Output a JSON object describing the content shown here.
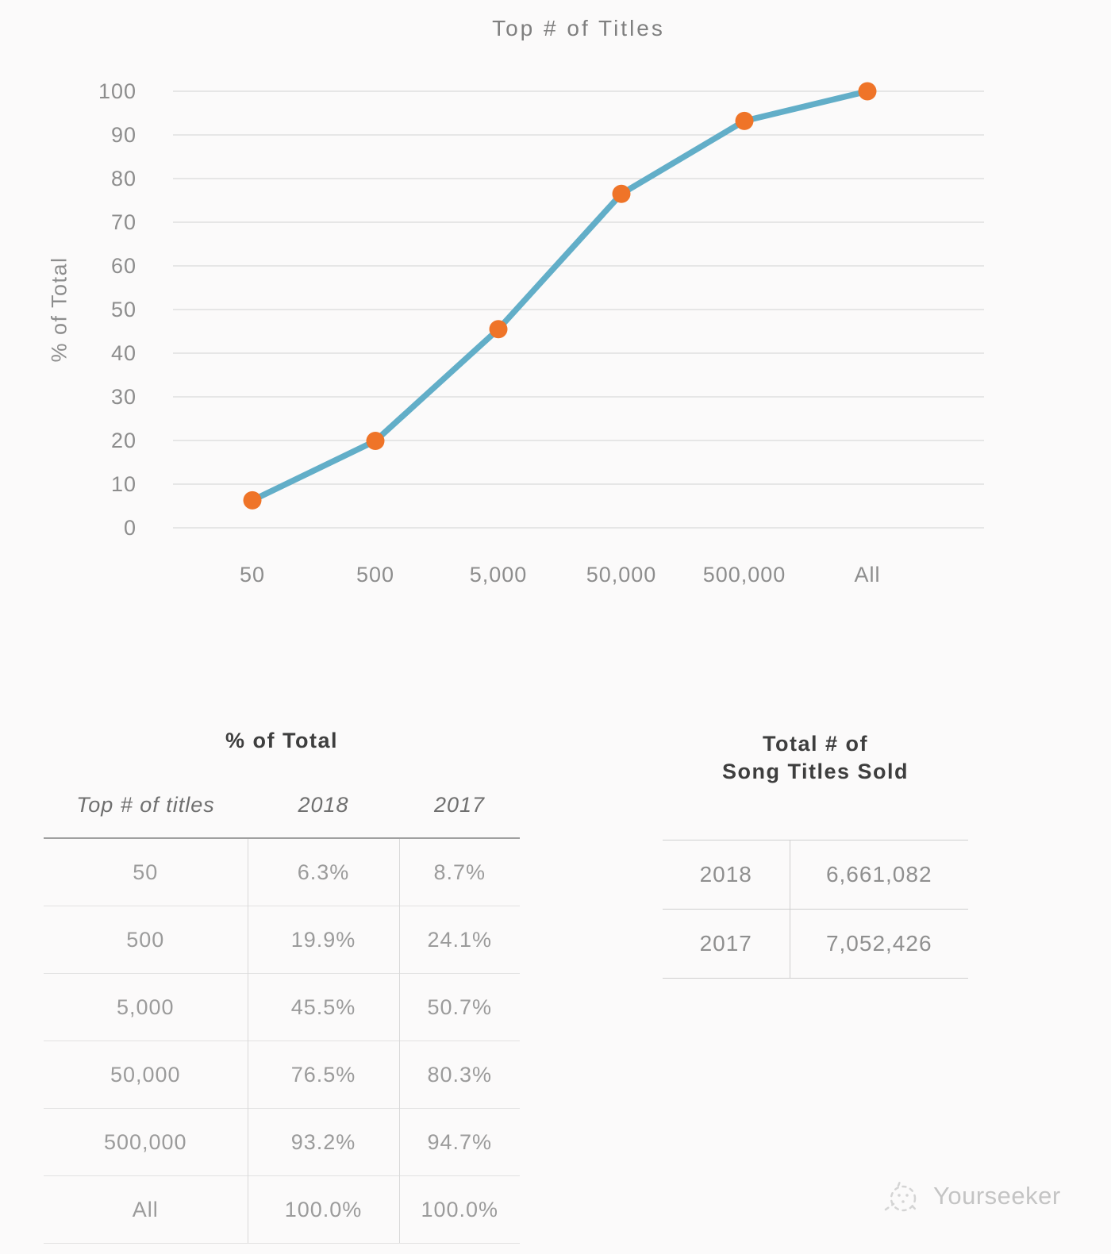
{
  "chart_data": {
    "type": "line",
    "title": "Top # of Titles",
    "ylabel": "% of Total",
    "xlabel": "",
    "categories": [
      "50",
      "500",
      "5,000",
      "50,000",
      "500,000",
      "All"
    ],
    "series": [
      {
        "name": "2018",
        "values": [
          6.3,
          19.9,
          45.5,
          76.5,
          93.2,
          100.0
        ]
      }
    ],
    "ylim": [
      0,
      100
    ],
    "ytick_step": 10,
    "grid": true,
    "legend_position": "none"
  },
  "percent_table": {
    "title": "% of Total",
    "columns": [
      "Top # of titles",
      "2018",
      "2017"
    ],
    "rows": [
      [
        "50",
        "6.3%",
        "8.7%"
      ],
      [
        "500",
        "19.9%",
        "24.1%"
      ],
      [
        "5,000",
        "45.5%",
        "50.7%"
      ],
      [
        "50,000",
        "76.5%",
        "80.3%"
      ],
      [
        "500,000",
        "93.2%",
        "94.7%"
      ],
      [
        "All",
        "100.0%",
        "100.0%"
      ]
    ]
  },
  "totals_table": {
    "title_line1": "Total # of",
    "title_line2": "Song Titles Sold",
    "rows": [
      [
        "2018",
        "6,661,082"
      ],
      [
        "2017",
        "7,052,426"
      ]
    ]
  },
  "watermark": {
    "label": "Yourseeker"
  },
  "colors": {
    "line": "#62aec8",
    "marker": "#ef7428",
    "grid": "#d9d9d9",
    "axis_text": "#8d8d8d"
  }
}
